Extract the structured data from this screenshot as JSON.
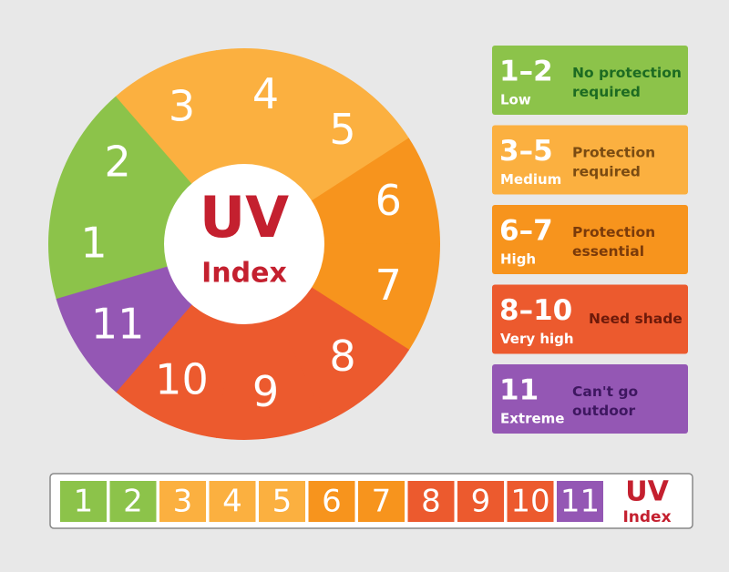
{
  "wheel": {
    "title": "UV",
    "subtitle": "Index"
  },
  "levels": [
    {
      "range": "1–2",
      "name": "Low",
      "advice": "No protection required",
      "numbers": [
        1,
        2
      ],
      "color": "#8cc34a",
      "text_color": "#1d6b22"
    },
    {
      "range": "3–5",
      "name": "Medium",
      "advice": "Protection required",
      "numbers": [
        3,
        4,
        5
      ],
      "color": "#fbb040",
      "text_color": "#7a4b12"
    },
    {
      "range": "6–7",
      "name": "High",
      "advice": "Protection essential",
      "numbers": [
        6,
        7
      ],
      "color": "#f7941d",
      "text_color": "#7a3a0a"
    },
    {
      "range": "8–10",
      "name": "Very high",
      "advice": "Need shade",
      "numbers": [
        8,
        9,
        10
      ],
      "color": "#ec5a2e",
      "text_color": "#6e1a0a"
    },
    {
      "range": "11",
      "name": "Extreme",
      "advice": "Can't go outdoor",
      "numbers": [
        11
      ],
      "color": "#9457b4",
      "text_color": "#3e1760"
    }
  ],
  "scale": {
    "title": "UV",
    "subtitle": "Index"
  }
}
